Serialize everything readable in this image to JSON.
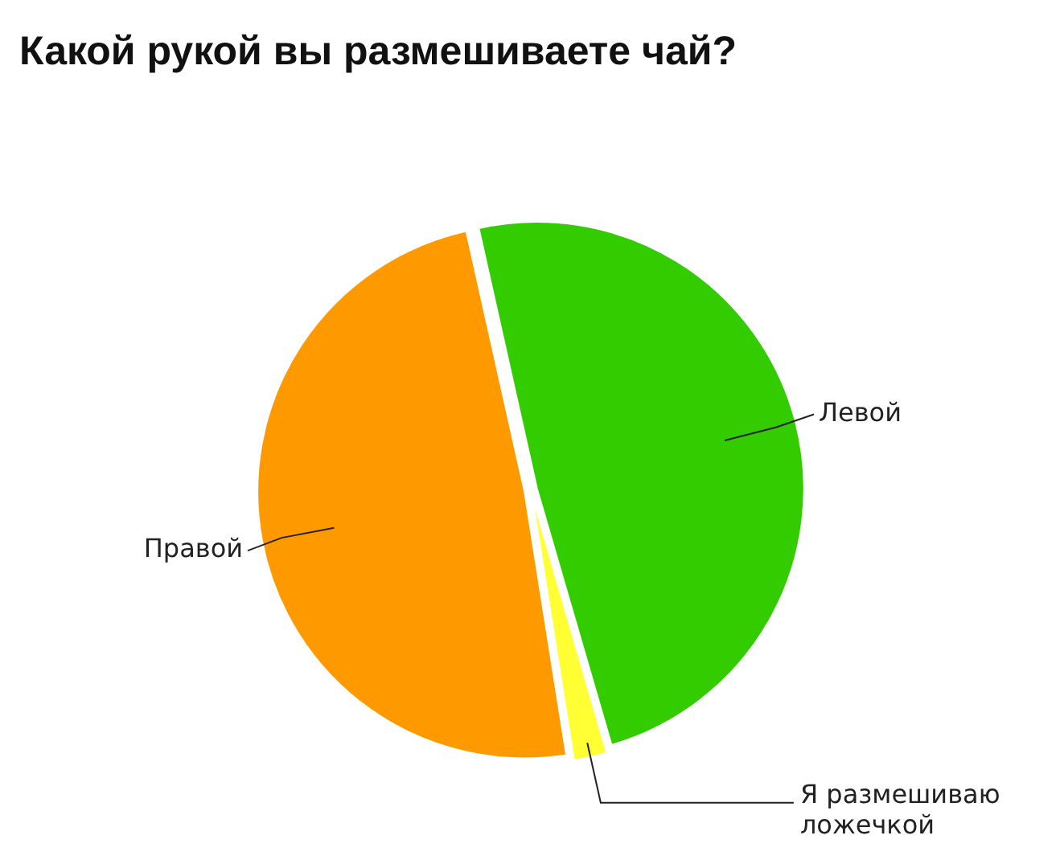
{
  "chart_data": {
    "type": "pie",
    "title": "Какой рукой вы размешиваете чай?",
    "categories": [
      "Левой",
      "Я размешиваю ложечкой",
      "Правой"
    ],
    "values": [
      49,
      2,
      49
    ],
    "colors": [
      "#33cc00",
      "#ffff33",
      "#ff9900"
    ]
  }
}
